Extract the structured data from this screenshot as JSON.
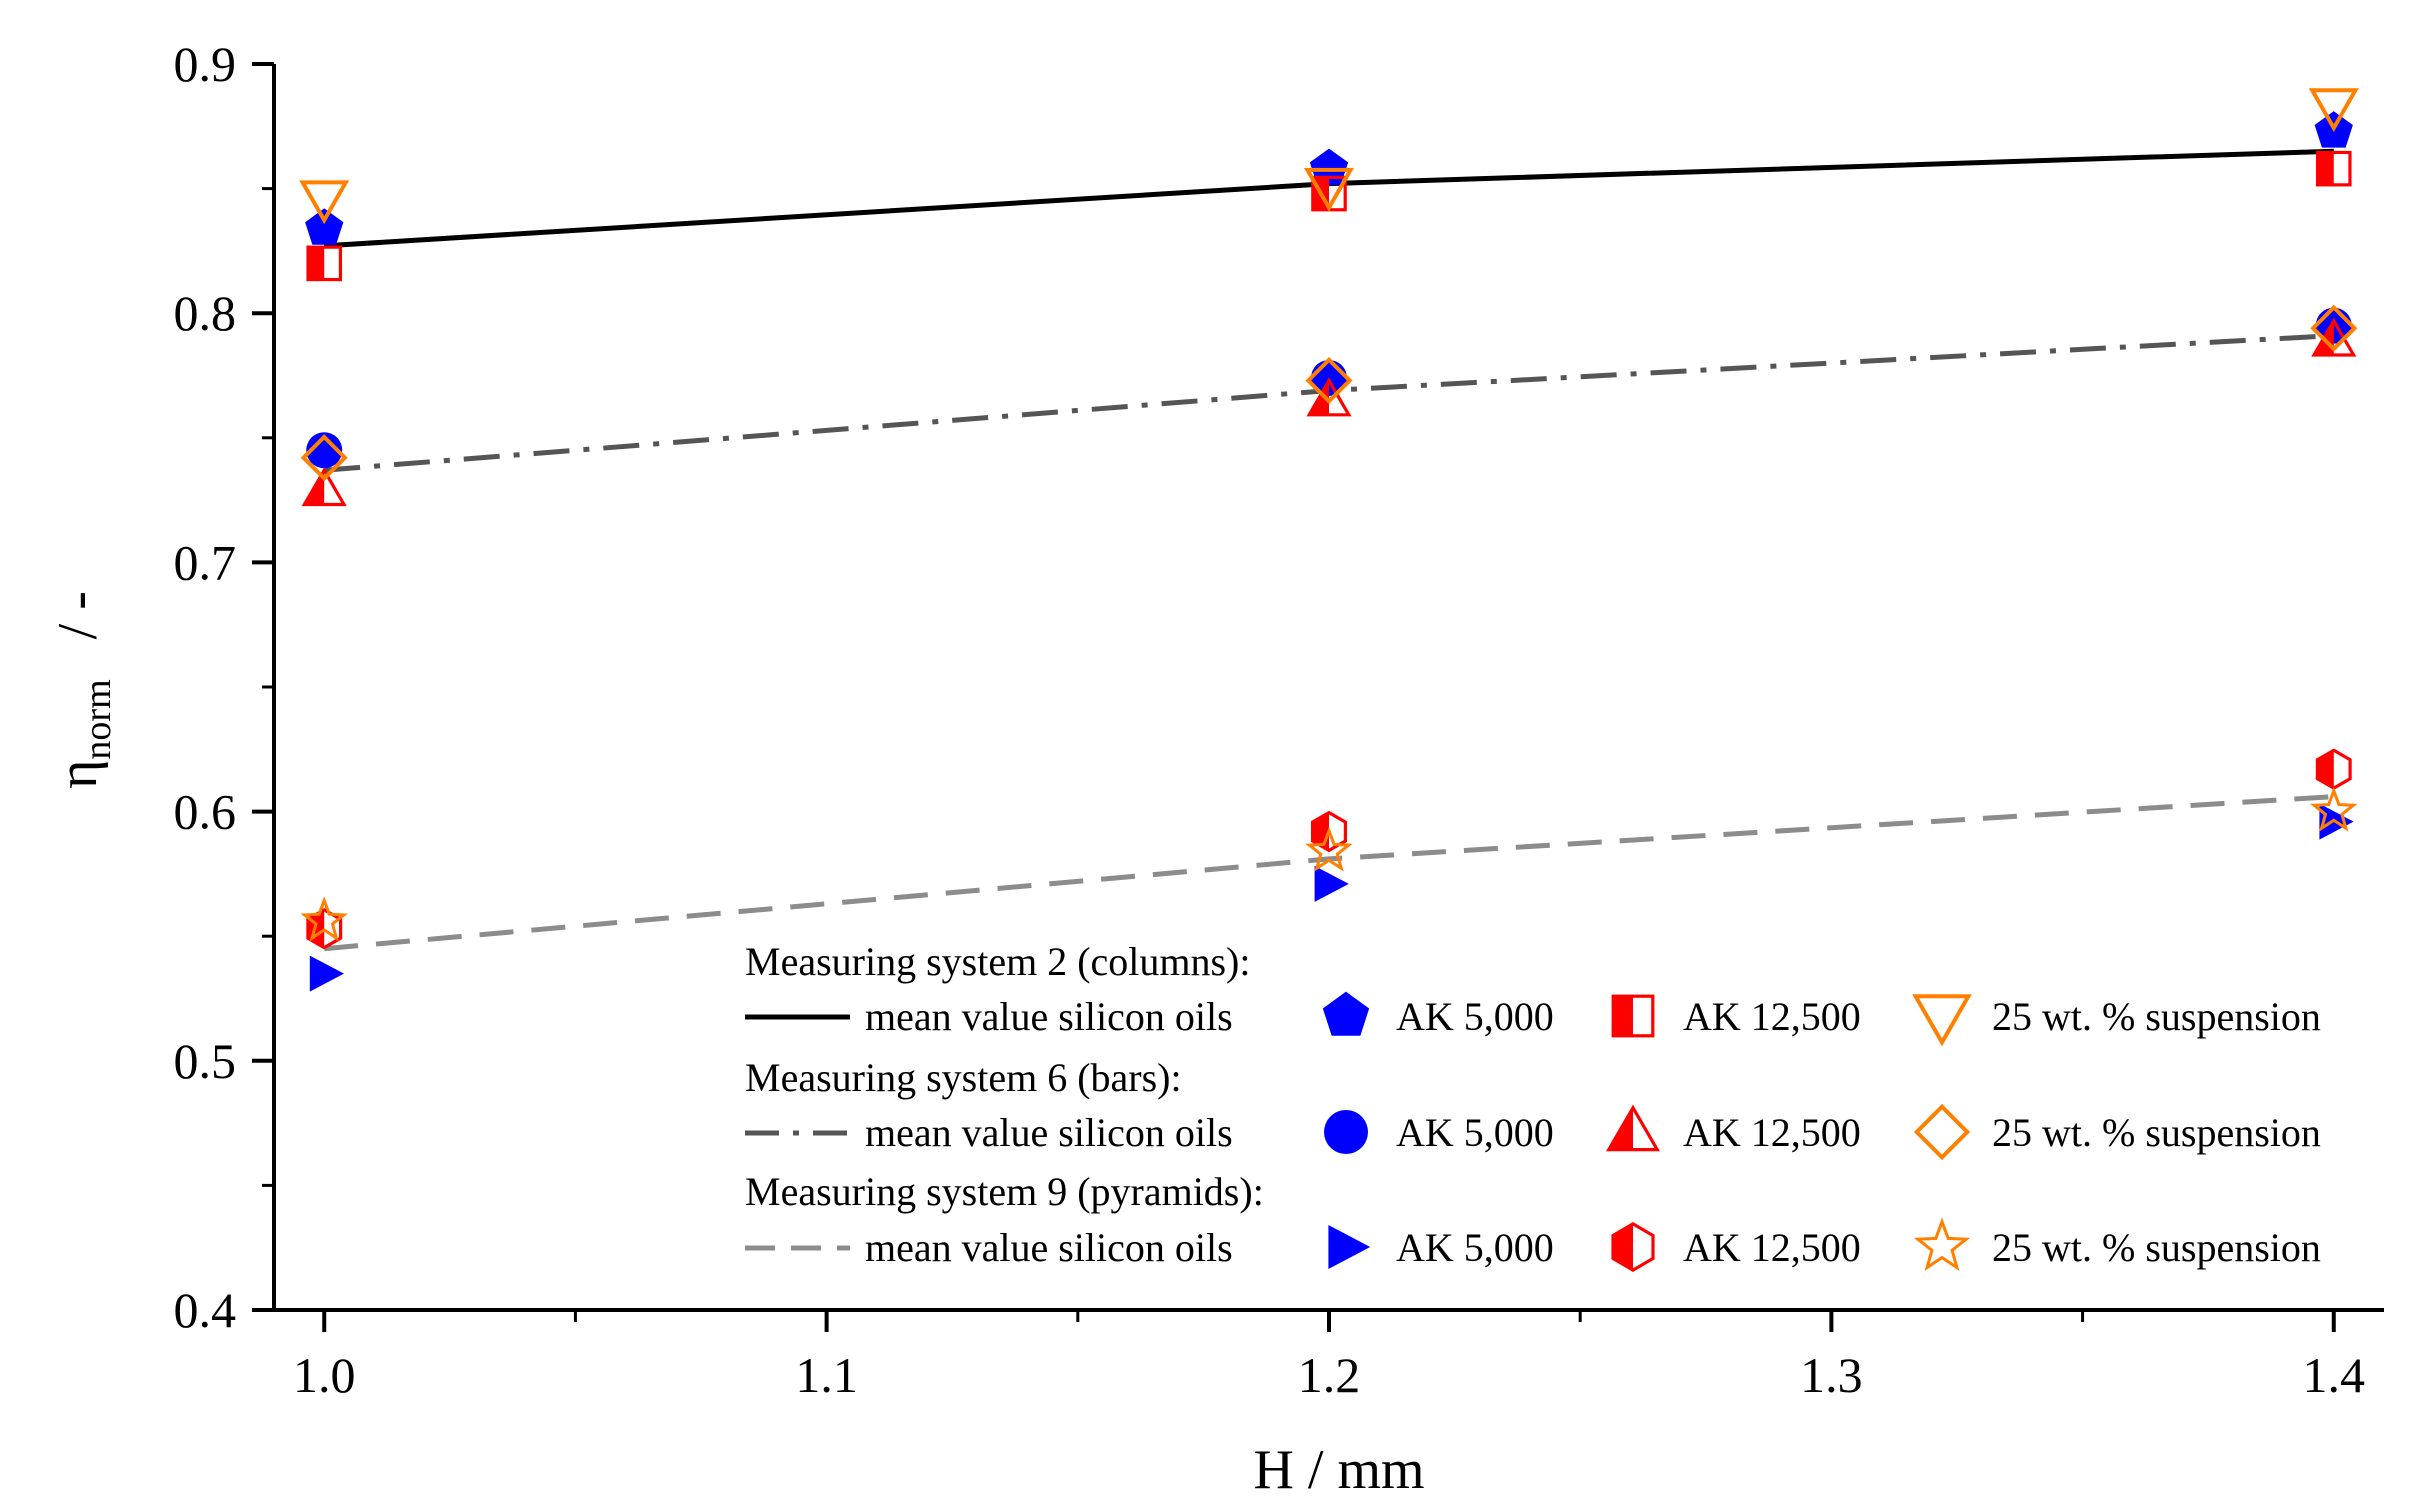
{
  "chart_data": {
    "type": "scatter",
    "xlabel": "H / mm",
    "ylabel_main": "η",
    "ylabel_sub": "norm",
    "ylabel_unit": "/ -",
    "xlim": [
      0.99,
      1.41
    ],
    "ylim": [
      0.4,
      0.9
    ],
    "x_ticks": [
      1.0,
      1.1,
      1.2,
      1.3,
      1.4
    ],
    "x_tick_labels": [
      "1.0",
      "1.1",
      "1.2",
      "1.3",
      "1.4"
    ],
    "y_ticks": [
      0.4,
      0.5,
      0.6,
      0.7,
      0.8,
      0.9
    ],
    "y_tick_labels": [
      "0.4",
      "0.5",
      "0.6",
      "0.7",
      "0.8",
      "0.9"
    ],
    "x": [
      1.0,
      1.2,
      1.4
    ],
    "colors": {
      "blue": "#0000ff",
      "red": "#ff0000",
      "orange": "#ff8000",
      "black": "#000000",
      "dashdot": "#555555",
      "dash": "#8c8c8c"
    },
    "groups": [
      {
        "title": "Measuring system 2 (columns):",
        "line": {
          "label": "mean value silicon oils",
          "style": "solid",
          "values": [
            0.827,
            0.852,
            0.865
          ]
        },
        "series": [
          {
            "name": "AK 5,000",
            "marker": "pentagon",
            "color": "blue",
            "values": [
              0.834,
              0.858,
              0.873
            ]
          },
          {
            "name": "AK 12,500",
            "marker": "square-half",
            "color": "red",
            "values": [
              0.82,
              0.848,
              0.858
            ]
          },
          {
            "name": "25 wt. % suspension",
            "marker": "triangle-down-open",
            "color": "orange",
            "values": [
              0.846,
              0.851,
              0.883
            ]
          }
        ]
      },
      {
        "title": "Measuring system 6 (bars):",
        "line": {
          "label": "mean value silicon oils",
          "style": "dashdot",
          "values": [
            0.737,
            0.769,
            0.791
          ]
        },
        "series": [
          {
            "name": "AK 5,000",
            "marker": "circle",
            "color": "blue",
            "values": [
              0.745,
              0.774,
              0.795
            ]
          },
          {
            "name": "AK 12,500",
            "marker": "triangle-up-half",
            "color": "red",
            "values": [
              0.729,
              0.765,
              0.789
            ]
          },
          {
            "name": "25 wt. % suspension",
            "marker": "diamond-open",
            "color": "orange",
            "values": [
              0.742,
              0.773,
              0.794
            ]
          }
        ]
      },
      {
        "title": "Measuring system 9 (pyramids):",
        "line": {
          "label": "mean value silicon oils",
          "style": "dash",
          "values": [
            0.545,
            0.581,
            0.606
          ]
        },
        "series": [
          {
            "name": "AK 5,000",
            "marker": "triangle-right",
            "color": "blue",
            "values": [
              0.535,
              0.571,
              0.596
            ]
          },
          {
            "name": "AK 12,500",
            "marker": "hexagon-half",
            "color": "red",
            "values": [
              0.553,
              0.592,
              0.617
            ]
          },
          {
            "name": "25 wt. % suspension",
            "marker": "star-open",
            "color": "orange",
            "values": [
              0.556,
              0.584,
              0.6
            ]
          }
        ]
      }
    ]
  }
}
